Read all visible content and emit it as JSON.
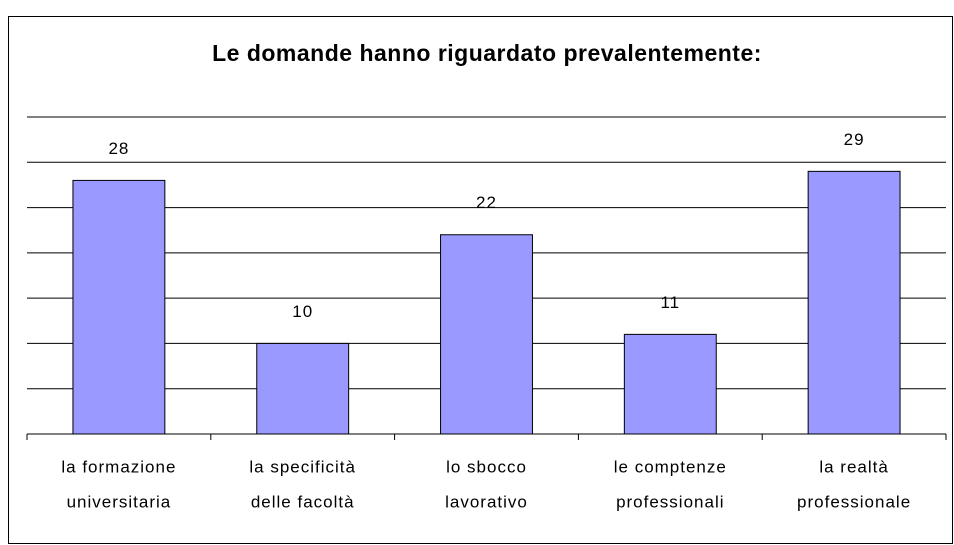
{
  "chart_data": {
    "type": "bar",
    "title": "Le domande hanno riguardato prevalentemente:",
    "categories": [
      [
        "la formazione",
        "universitaria"
      ],
      [
        "la specificità",
        "delle facoltà"
      ],
      [
        "lo sbocco",
        "lavorativo"
      ],
      [
        "le comptenze",
        "professionali"
      ],
      [
        "la realtà",
        "professionale"
      ]
    ],
    "values": [
      28,
      10,
      22,
      11,
      29
    ],
    "color": "#9999ff",
    "ylim": [
      0,
      35
    ],
    "yticks": [
      0,
      5,
      10,
      15,
      20,
      25,
      30,
      35
    ],
    "grid": true
  }
}
